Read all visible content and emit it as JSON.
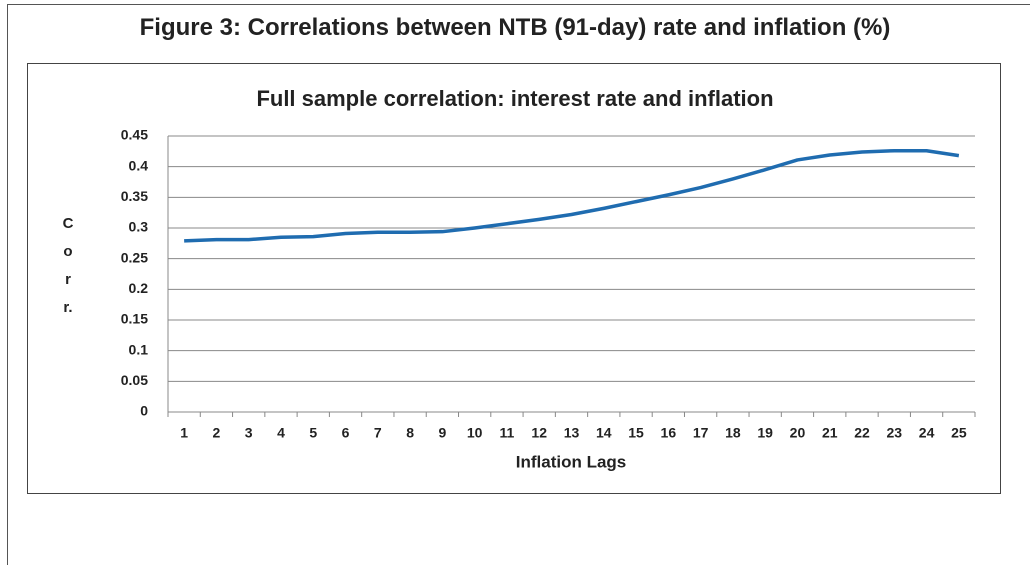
{
  "chart_data": {
    "type": "line",
    "figure_title": "Figure 3: Correlations between NTB (91-day) rate and inflation (%)",
    "title": "Full sample correlation: interest rate and inflation",
    "x_label": "Inflation Lags",
    "y_label": "Corr.",
    "categories": [
      "1",
      "2",
      "3",
      "4",
      "5",
      "6",
      "7",
      "8",
      "9",
      "10",
      "11",
      "12",
      "13",
      "14",
      "15",
      "16",
      "17",
      "18",
      "19",
      "20",
      "21",
      "22",
      "23",
      "24",
      "25"
    ],
    "series": [
      {
        "name": "Corr.",
        "color": "#1f6cb0",
        "values": [
          0.279,
          0.281,
          0.281,
          0.285,
          0.286,
          0.291,
          0.293,
          0.293,
          0.294,
          0.3,
          0.307,
          0.314,
          0.322,
          0.332,
          0.343,
          0.354,
          0.366,
          0.38,
          0.395,
          0.411,
          0.419,
          0.424,
          0.426,
          0.426,
          0.418
        ]
      }
    ],
    "ylim": [
      0,
      0.45
    ],
    "yticks": [
      0,
      0.05,
      0.1,
      0.15,
      0.2,
      0.25,
      0.3,
      0.35,
      0.4,
      0.45
    ],
    "grid": true
  }
}
